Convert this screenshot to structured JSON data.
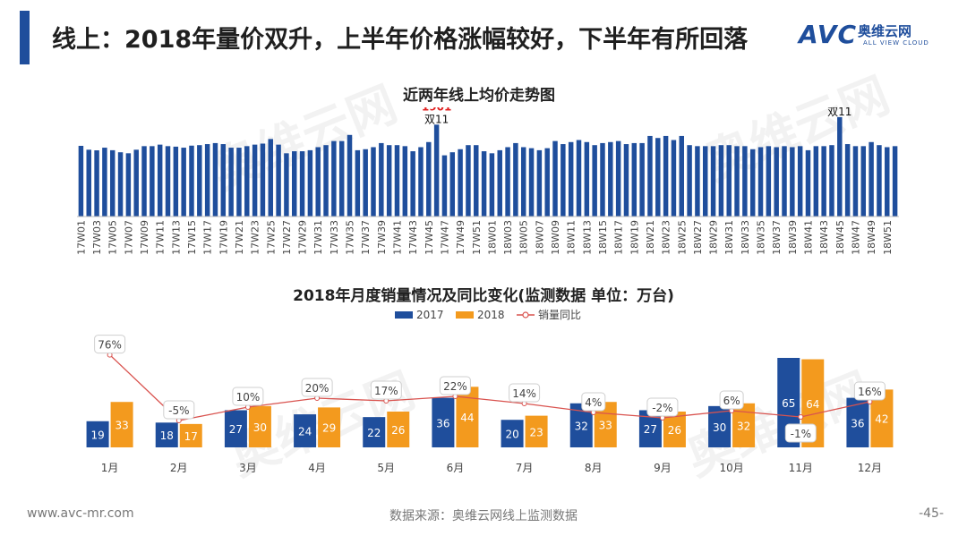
{
  "header": {
    "title": "线上：2018年量价双升，上半年价格涨幅较好，下半年有所回落",
    "logo_mark": "AVC",
    "logo_cn": "奥维云网",
    "logo_en": "ALL VIEW CLOUD"
  },
  "watermark": {
    "text": "奥维云网",
    "sub": "ALL VIEW CLOUD"
  },
  "colors": {
    "accent": "#1f4e9c",
    "bar_2017": "#1f4e9c",
    "bar_2018": "#f39a1e",
    "yoy_line": "#d9534f",
    "peak_label": "#e02020"
  },
  "footer": {
    "url": "www.avc-mr.com",
    "source": "数据来源：奥维云网线上监测数据",
    "page": "-45-"
  },
  "chart_data": [
    {
      "type": "bar",
      "title": "近两年线上均价走势图",
      "categories": [
        "17W01",
        "17W02",
        "17W03",
        "17W04",
        "17W05",
        "17W06",
        "17W07",
        "17W08",
        "17W09",
        "17W10",
        "17W11",
        "17W12",
        "17W13",
        "17W14",
        "17W15",
        "17W16",
        "17W17",
        "17W18",
        "17W19",
        "17W20",
        "17W21",
        "17W22",
        "17W23",
        "17W24",
        "17W25",
        "17W26",
        "17W27",
        "17W28",
        "17W29",
        "17W30",
        "17W31",
        "17W32",
        "17W33",
        "17W34",
        "17W35",
        "17W36",
        "17W37",
        "17W38",
        "17W39",
        "17W40",
        "17W41",
        "17W42",
        "17W43",
        "17W44",
        "17W45",
        "17W46",
        "17W47",
        "17W48",
        "17W49",
        "17W50",
        "17W51",
        "17W52",
        "18W01",
        "18W02",
        "18W03",
        "18W04",
        "18W05",
        "18W06",
        "18W07",
        "18W08",
        "18W09",
        "18W10",
        "18W11",
        "18W12",
        "18W13",
        "18W14",
        "18W15",
        "18W16",
        "18W17",
        "18W18",
        "18W19",
        "18W20",
        "18W21",
        "18W22",
        "18W23",
        "18W24",
        "18W25",
        "18W26",
        "18W27",
        "18W28",
        "18W29",
        "18W30",
        "18W31",
        "18W32",
        "18W33",
        "18W34",
        "18W35",
        "18W36",
        "18W37",
        "18W38",
        "18W39",
        "18W40",
        "18W41",
        "18W42",
        "18W43",
        "18W44",
        "18W45",
        "18W46",
        "18W47",
        "18W48",
        "18W49",
        "18W50",
        "18W51",
        "18W52"
      ],
      "tick_labels": [
        "17W01",
        "17W03",
        "17W05",
        "17W07",
        "17W09",
        "17W11",
        "17W13",
        "17W15",
        "17W17",
        "17W19",
        "17W21",
        "17W23",
        "17W25",
        "17W27",
        "17W29",
        "17W31",
        "17W33",
        "17W35",
        "17W37",
        "17W39",
        "17W41",
        "17W43",
        "17W45",
        "17W47",
        "17W49",
        "17W51",
        "18W01",
        "18W03",
        "18W05",
        "18W07",
        "18W09",
        "18W11",
        "18W13",
        "18W15",
        "18W17",
        "18W19",
        "18W21",
        "18W23",
        "18W25",
        "18W27",
        "18W29",
        "18W31",
        "18W33",
        "18W35",
        "18W37",
        "18W39",
        "18W41",
        "18W43",
        "18W45",
        "18W47",
        "18W49",
        "18W51"
      ],
      "values": [
        1693,
        1655,
        1649,
        1675,
        1650,
        1630,
        1620,
        1655,
        1690,
        1690,
        1705,
        1690,
        1685,
        1675,
        1695,
        1700,
        1710,
        1720,
        1710,
        1675,
        1675,
        1690,
        1705,
        1715,
        1760,
        1705,
        1620,
        1640,
        1640,
        1650,
        1680,
        1700,
        1740,
        1740,
        1800,
        1650,
        1660,
        1680,
        1720,
        1700,
        1700,
        1690,
        1640,
        1680,
        1730,
        1901,
        1600,
        1630,
        1660,
        1700,
        1700,
        1640,
        1620,
        1650,
        1680,
        1720,
        1680,
        1670,
        1650,
        1670,
        1740,
        1710,
        1730,
        1750,
        1730,
        1700,
        1720,
        1730,
        1740,
        1710,
        1720,
        1720,
        1790,
        1770,
        1790,
        1750,
        1790,
        1700,
        1690,
        1690,
        1690,
        1700,
        1700,
        1690,
        1690,
        1660,
        1680,
        1690,
        1680,
        1690,
        1680,
        1690,
        1650,
        1690,
        1690,
        1700,
        1975,
        1710,
        1690,
        1690,
        1730,
        1700,
        1680,
        1690
      ],
      "annotations": [
        {
          "category": "17W46",
          "value_label": "1901",
          "text": "双11"
        },
        {
          "category": "18W45",
          "value_label": "1975",
          "text": "双11"
        }
      ],
      "ylim": [
        1000,
        2000
      ]
    },
    {
      "type": "bar",
      "title": "2018年月度销量情况及同比变化(监测数据 单位：万台)",
      "categories": [
        "1月",
        "2月",
        "3月",
        "4月",
        "5月",
        "6月",
        "7月",
        "8月",
        "9月",
        "10月",
        "11月",
        "12月"
      ],
      "series": [
        {
          "name": "2017",
          "values": [
            19,
            18,
            27,
            24,
            22,
            36,
            20,
            32,
            27,
            30,
            65,
            36
          ]
        },
        {
          "name": "2018",
          "values": [
            33,
            17,
            30,
            29,
            26,
            44,
            23,
            33,
            26,
            32,
            64,
            42
          ]
        }
      ],
      "line_series": {
        "name": "销量同比",
        "values": [
          76,
          -5,
          10,
          20,
          17,
          22,
          14,
          4,
          -2,
          6,
          -1,
          16
        ],
        "labels": [
          "76%",
          "-5%",
          "10%",
          "20%",
          "17%",
          "22%",
          "14%",
          "4%",
          "-2%",
          "6%",
          "-1%",
          "16%"
        ]
      },
      "legend": "top-center"
    }
  ]
}
